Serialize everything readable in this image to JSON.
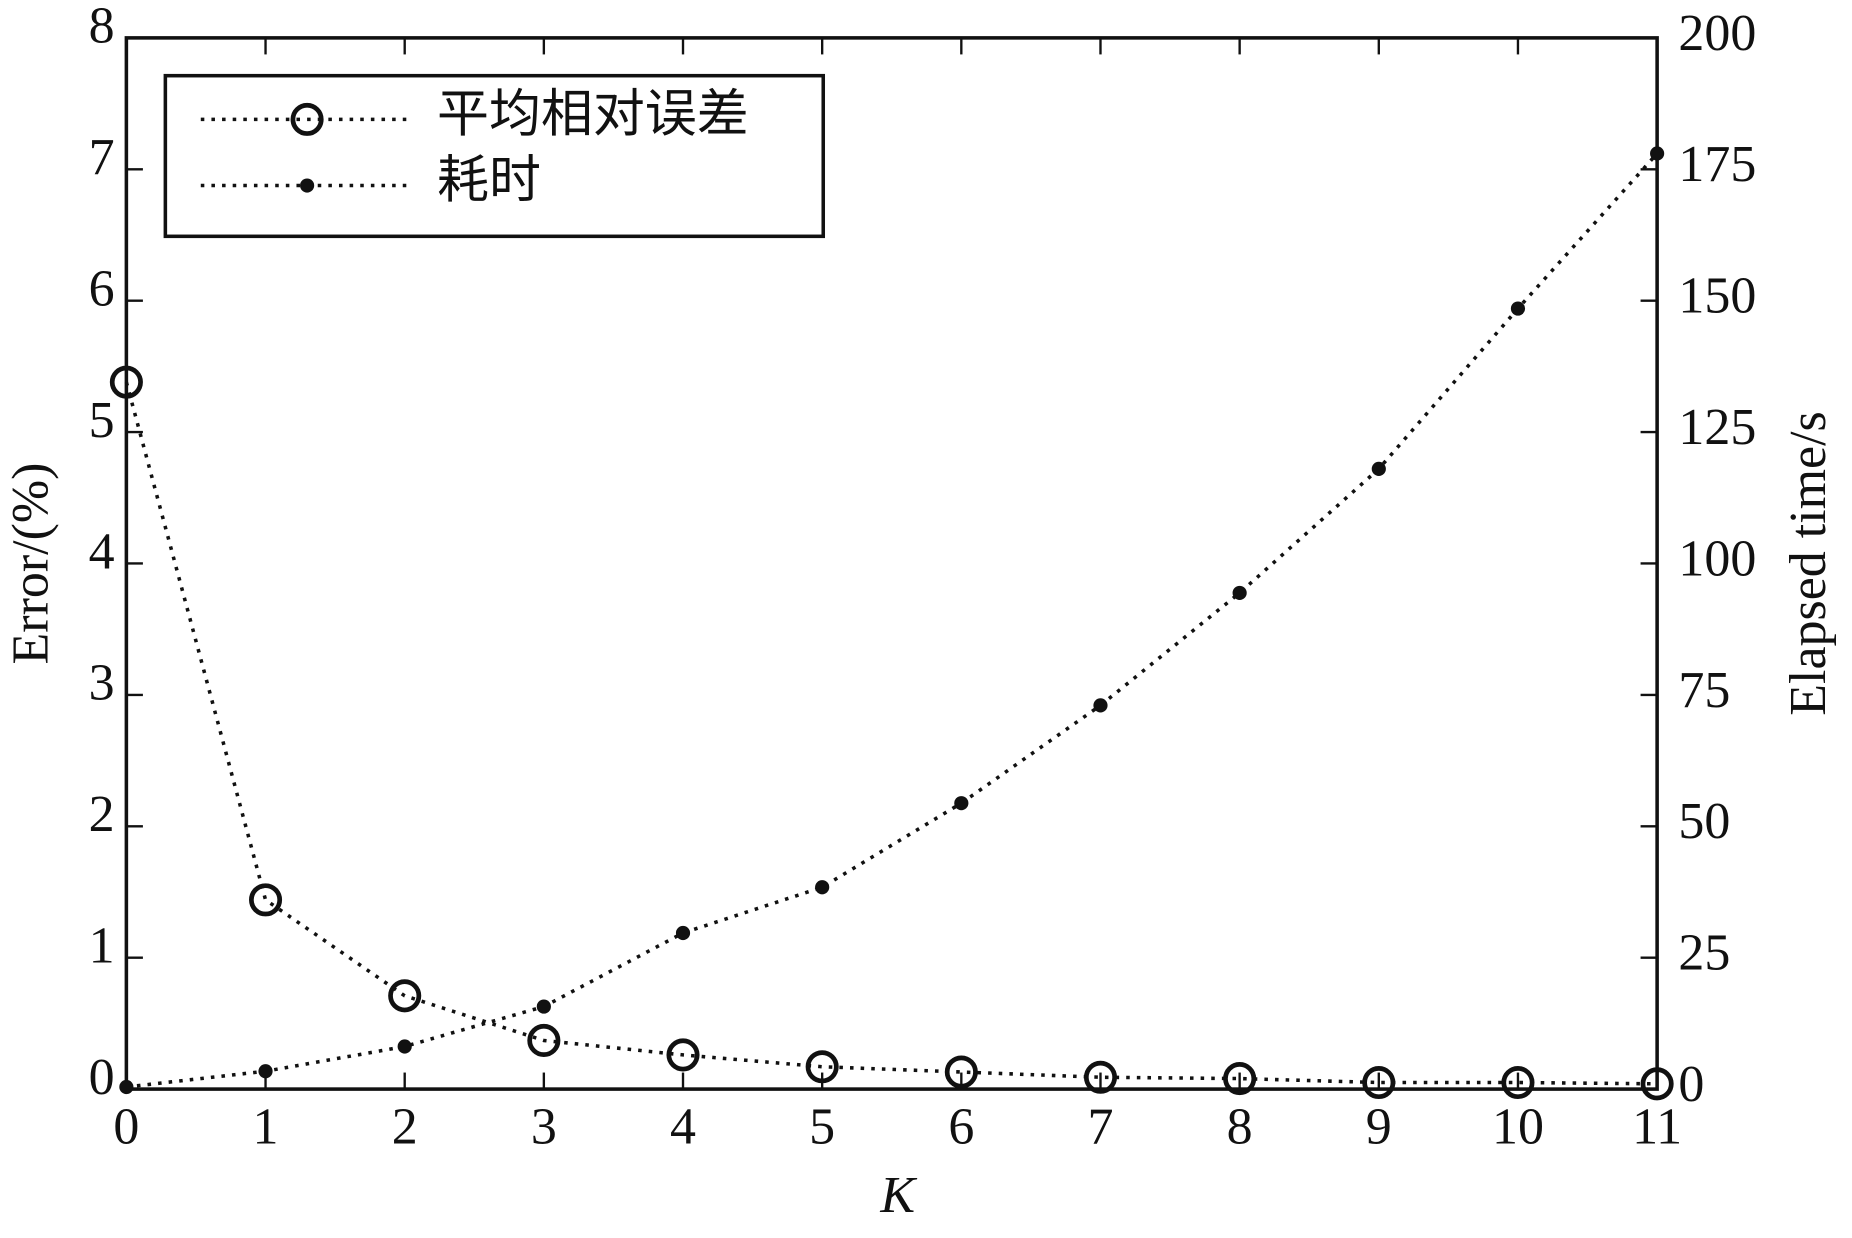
{
  "chart_data": {
    "type": "line",
    "xlabel": "K",
    "ylabel": "Error/(%)",
    "y2label": "Elapsed time/s",
    "x": [
      0,
      1,
      2,
      3,
      4,
      5,
      6,
      7,
      8,
      9,
      10,
      11
    ],
    "xlim": [
      0,
      11
    ],
    "xticks": [
      0,
      1,
      2,
      3,
      4,
      5,
      6,
      7,
      8,
      9,
      10,
      11
    ],
    "ylim": [
      0,
      8
    ],
    "yticks": [
      0,
      1,
      2,
      3,
      4,
      5,
      6,
      7,
      8
    ],
    "y2lim": [
      0,
      200
    ],
    "y2ticks": [
      0,
      25,
      50,
      75,
      100,
      125,
      150,
      175,
      200
    ],
    "legend": "upper left",
    "grid": false,
    "line_style": "dotted",
    "series": [
      {
        "name": "平均相对误差",
        "color": "#111111",
        "marker": "circle-open",
        "axis": "y",
        "values": [
          5.38,
          1.44,
          0.71,
          0.37,
          0.26,
          0.17,
          0.13,
          0.09,
          0.08,
          0.05,
          0.05,
          0.04
        ]
      },
      {
        "name": "耗时",
        "color": "#111111",
        "marker": "dot",
        "axis": "y2",
        "values": [
          0.4,
          3.4,
          8.1,
          15.7,
          29.7,
          38.4,
          54.4,
          73,
          94.4,
          118,
          148.5,
          178
        ]
      }
    ]
  }
}
